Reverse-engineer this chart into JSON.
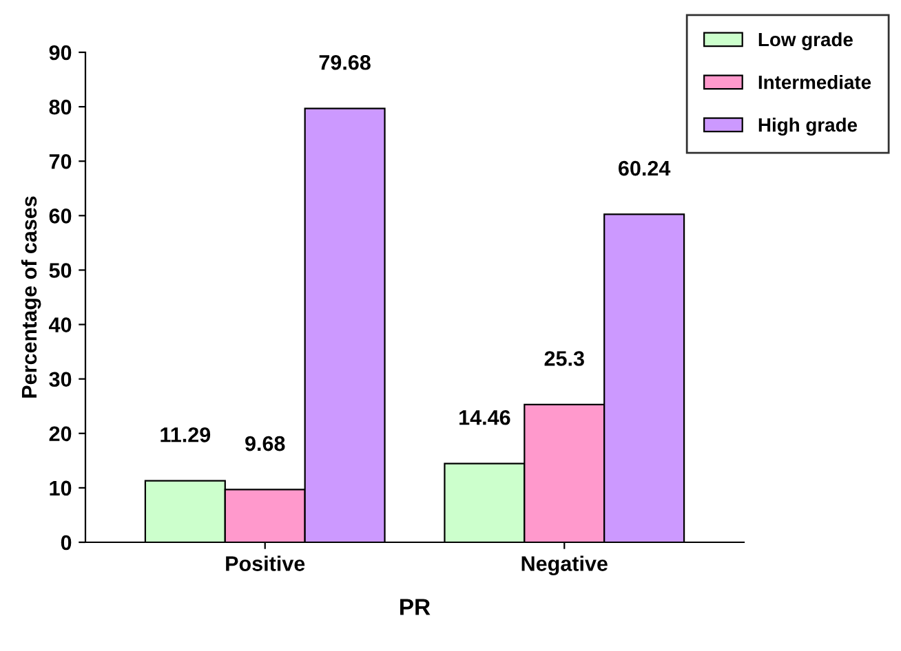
{
  "chart_data": {
    "type": "bar",
    "categories": [
      "Positive",
      "Negative"
    ],
    "series": [
      {
        "name": "Low grade",
        "color": "#ccffcc",
        "values": [
          11.29,
          14.46
        ]
      },
      {
        "name": "Intermediate",
        "color": "#ff99cc",
        "values": [
          9.68,
          25.3
        ]
      },
      {
        "name": "High grade",
        "color": "#cc99ff",
        "values": [
          79.68,
          60.24
        ]
      }
    ],
    "xlabel": "PR",
    "ylabel": "Percentage of cases",
    "ylim": [
      0,
      90
    ],
    "yticks": [
      0,
      10,
      20,
      30,
      40,
      50,
      60,
      70,
      80,
      90
    ],
    "data_labels": true,
    "legend": "top right",
    "grid": false
  }
}
